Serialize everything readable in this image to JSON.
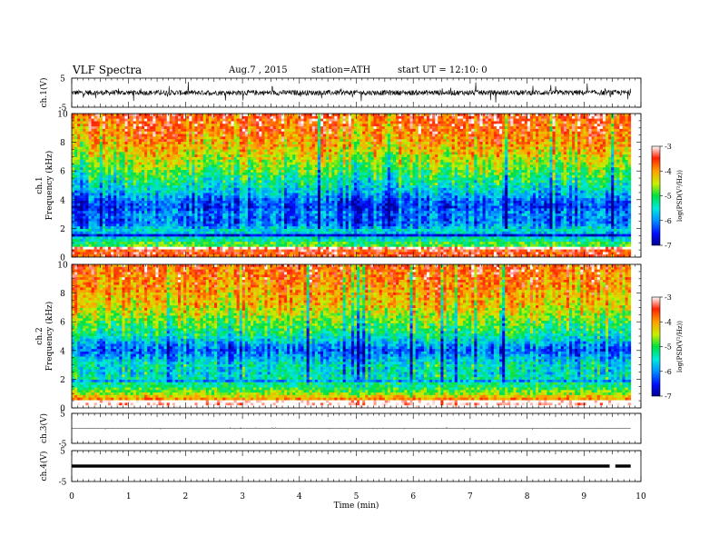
{
  "header": {
    "title": "VLF Spectra",
    "date": "Aug.7 , 2015",
    "station": "station=ATH",
    "start": "start UT = 12:10: 0"
  },
  "chart_data": [
    {
      "type": "line",
      "panel": "ch1-waveform",
      "ylabel": "ch.1(V)",
      "ylim": [
        -5,
        5
      ],
      "yticks": [
        "5",
        "-5"
      ],
      "x_unit": "min",
      "xlim": [
        0,
        10
      ],
      "data_end": 9.82,
      "level": 0,
      "noise_amplitude": 0.9,
      "spike_amplitude": 3.2,
      "color": "#000000"
    },
    {
      "type": "heatmap",
      "panel": "ch1-spectrogram",
      "ylabel": "ch.1\nFrequency (kHz)",
      "ylim": [
        0,
        10
      ],
      "yticks": [
        0,
        2,
        4,
        6,
        8,
        10
      ],
      "xlim": [
        0,
        10
      ],
      "data_end": 9.82,
      "colorbar": {
        "label": "log(PSD(V²/Hz))",
        "ticks": [
          "-3",
          "-4",
          "-5",
          "-6",
          "-7"
        ],
        "range": [
          -7,
          -3
        ]
      },
      "profile_logpsd": [
        {
          "f": 0.0,
          "v": -3.3
        },
        {
          "f": 0.5,
          "v": -3.6
        },
        {
          "f": 1.0,
          "v": -5.2
        },
        {
          "f": 1.5,
          "v": -5.6
        },
        {
          "f": 2.0,
          "v": -5.8
        },
        {
          "f": 2.5,
          "v": -6.2
        },
        {
          "f": 3.0,
          "v": -6.0
        },
        {
          "f": 3.5,
          "v": -6.4
        },
        {
          "f": 4.0,
          "v": -6.1
        },
        {
          "f": 4.5,
          "v": -5.7
        },
        {
          "f": 5.0,
          "v": -5.4
        },
        {
          "f": 6.0,
          "v": -4.9
        },
        {
          "f": 7.0,
          "v": -4.4
        },
        {
          "f": 8.0,
          "v": -4.0
        },
        {
          "f": 9.0,
          "v": -3.7
        },
        {
          "f": 10.0,
          "v": -3.5
        }
      ]
    },
    {
      "type": "heatmap",
      "panel": "ch2-spectrogram",
      "ylabel": "ch.2\nFrequency (kHz)",
      "ylim": [
        0,
        10
      ],
      "yticks": [
        0,
        2,
        4,
        6,
        8,
        10
      ],
      "xlim": [
        0,
        10
      ],
      "data_end": 9.82,
      "colorbar": {
        "label": "log(PSD(V²/Hz))",
        "ticks": [
          "-3",
          "-4",
          "-5",
          "-6",
          "-7"
        ],
        "range": [
          -7,
          -3
        ]
      },
      "profile_logpsd": [
        {
          "f": 0.0,
          "v": -3.4
        },
        {
          "f": 0.5,
          "v": -3.7
        },
        {
          "f": 1.0,
          "v": -4.6
        },
        {
          "f": 1.5,
          "v": -5.1
        },
        {
          "f": 2.0,
          "v": -5.3
        },
        {
          "f": 2.5,
          "v": -5.5
        },
        {
          "f": 3.0,
          "v": -5.4
        },
        {
          "f": 3.5,
          "v": -5.8
        },
        {
          "f": 4.0,
          "v": -6.2
        },
        {
          "f": 4.5,
          "v": -5.8
        },
        {
          "f": 5.0,
          "v": -5.3
        },
        {
          "f": 6.0,
          "v": -4.8
        },
        {
          "f": 7.0,
          "v": -4.3
        },
        {
          "f": 8.0,
          "v": -4.0
        },
        {
          "f": 9.0,
          "v": -3.8
        },
        {
          "f": 10.0,
          "v": -3.6
        }
      ]
    },
    {
      "type": "line",
      "panel": "ch3-waveform",
      "ylabel": "ch.3(V)",
      "ylim": [
        -5,
        5
      ],
      "yticks": [
        "5",
        "-5"
      ],
      "xlim": [
        0,
        10
      ],
      "data_end": 9.82,
      "level": 0,
      "noise_amplitude": 0.05,
      "spike_amplitude": 0.3,
      "color": "#000000"
    },
    {
      "type": "line",
      "panel": "ch4-waveform",
      "ylabel": "ch.4(V)",
      "ylim": [
        -5,
        5
      ],
      "yticks": [
        "5",
        "-5"
      ],
      "xlim": [
        0,
        10
      ],
      "data_end": 9.82,
      "level": 0,
      "band_height": 0.5,
      "gaps": [
        9.45,
        9.55
      ],
      "color": "#000000",
      "xlabel": "Time (min)",
      "xticks": [
        "0",
        "1",
        "2",
        "3",
        "4",
        "5",
        "6",
        "7",
        "8",
        "9",
        "10"
      ]
    }
  ]
}
